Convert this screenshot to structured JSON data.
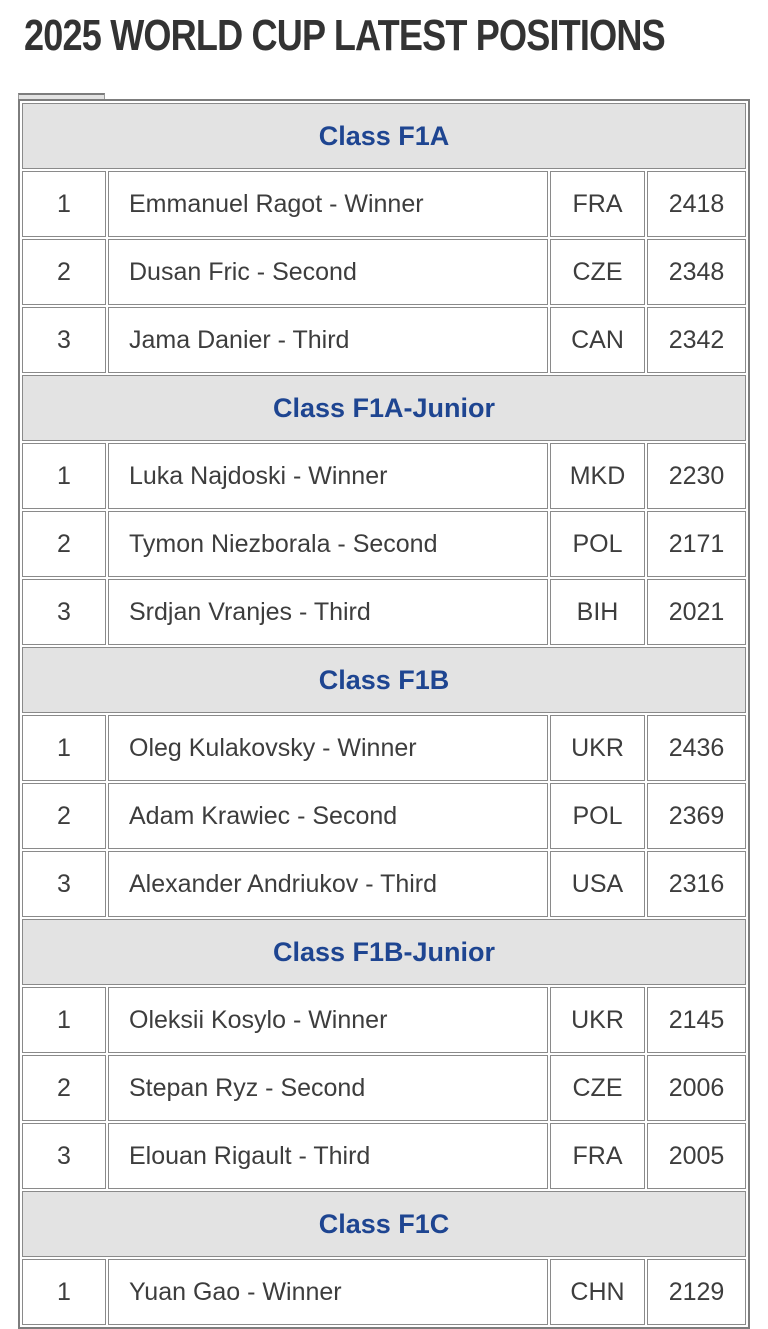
{
  "page": {
    "title": "2025 WORLD CUP LATEST POSITIONS"
  },
  "colors": {
    "title_text": "#333333",
    "band_background": "#e3e3e3",
    "band_text_blue": "#1e4591",
    "cell_text": "#3d3d3d",
    "border_gray": "#8a8a8a",
    "outer_border_gray": "#7d7d7d",
    "page_background": "#ffffff"
  },
  "table": {
    "sections": [
      {
        "label": "Class F1A",
        "rows": [
          {
            "rank": "1",
            "name": "Emmanuel Ragot - Winner",
            "country": "FRA",
            "score": "2418"
          },
          {
            "rank": "2",
            "name": "Dusan Fric - Second",
            "country": "CZE",
            "score": "2348"
          },
          {
            "rank": "3",
            "name": "Jama Danier - Third",
            "country": "CAN",
            "score": "2342"
          }
        ]
      },
      {
        "label": "Class F1A-Junior",
        "rows": [
          {
            "rank": "1",
            "name": "Luka Najdoski - Winner",
            "country": "MKD",
            "score": "2230"
          },
          {
            "rank": "2",
            "name": "Tymon Niezborala - Second",
            "country": "POL",
            "score": "2171"
          },
          {
            "rank": "3",
            "name": "Srdjan Vranjes - Third",
            "country": "BIH",
            "score": "2021"
          }
        ]
      },
      {
        "label": "Class F1B",
        "rows": [
          {
            "rank": "1",
            "name": "Oleg Kulakovsky - Winner",
            "country": "UKR",
            "score": "2436"
          },
          {
            "rank": "2",
            "name": "Adam Krawiec - Second",
            "country": "POL",
            "score": "2369"
          },
          {
            "rank": "3",
            "name": "Alexander Andriukov - Third",
            "country": "USA",
            "score": "2316"
          }
        ]
      },
      {
        "label": "Class F1B-Junior",
        "rows": [
          {
            "rank": "1",
            "name": "Oleksii Kosylo - Winner",
            "country": "UKR",
            "score": "2145"
          },
          {
            "rank": "2",
            "name": "Stepan Ryz - Second",
            "country": "CZE",
            "score": "2006"
          },
          {
            "rank": "3",
            "name": "Elouan Rigault - Third",
            "country": "FRA",
            "score": "2005"
          }
        ]
      },
      {
        "label": "Class F1C",
        "rows": [
          {
            "rank": "1",
            "name": "Yuan Gao - Winner",
            "country": "CHN",
            "score": "2129"
          }
        ]
      }
    ]
  }
}
